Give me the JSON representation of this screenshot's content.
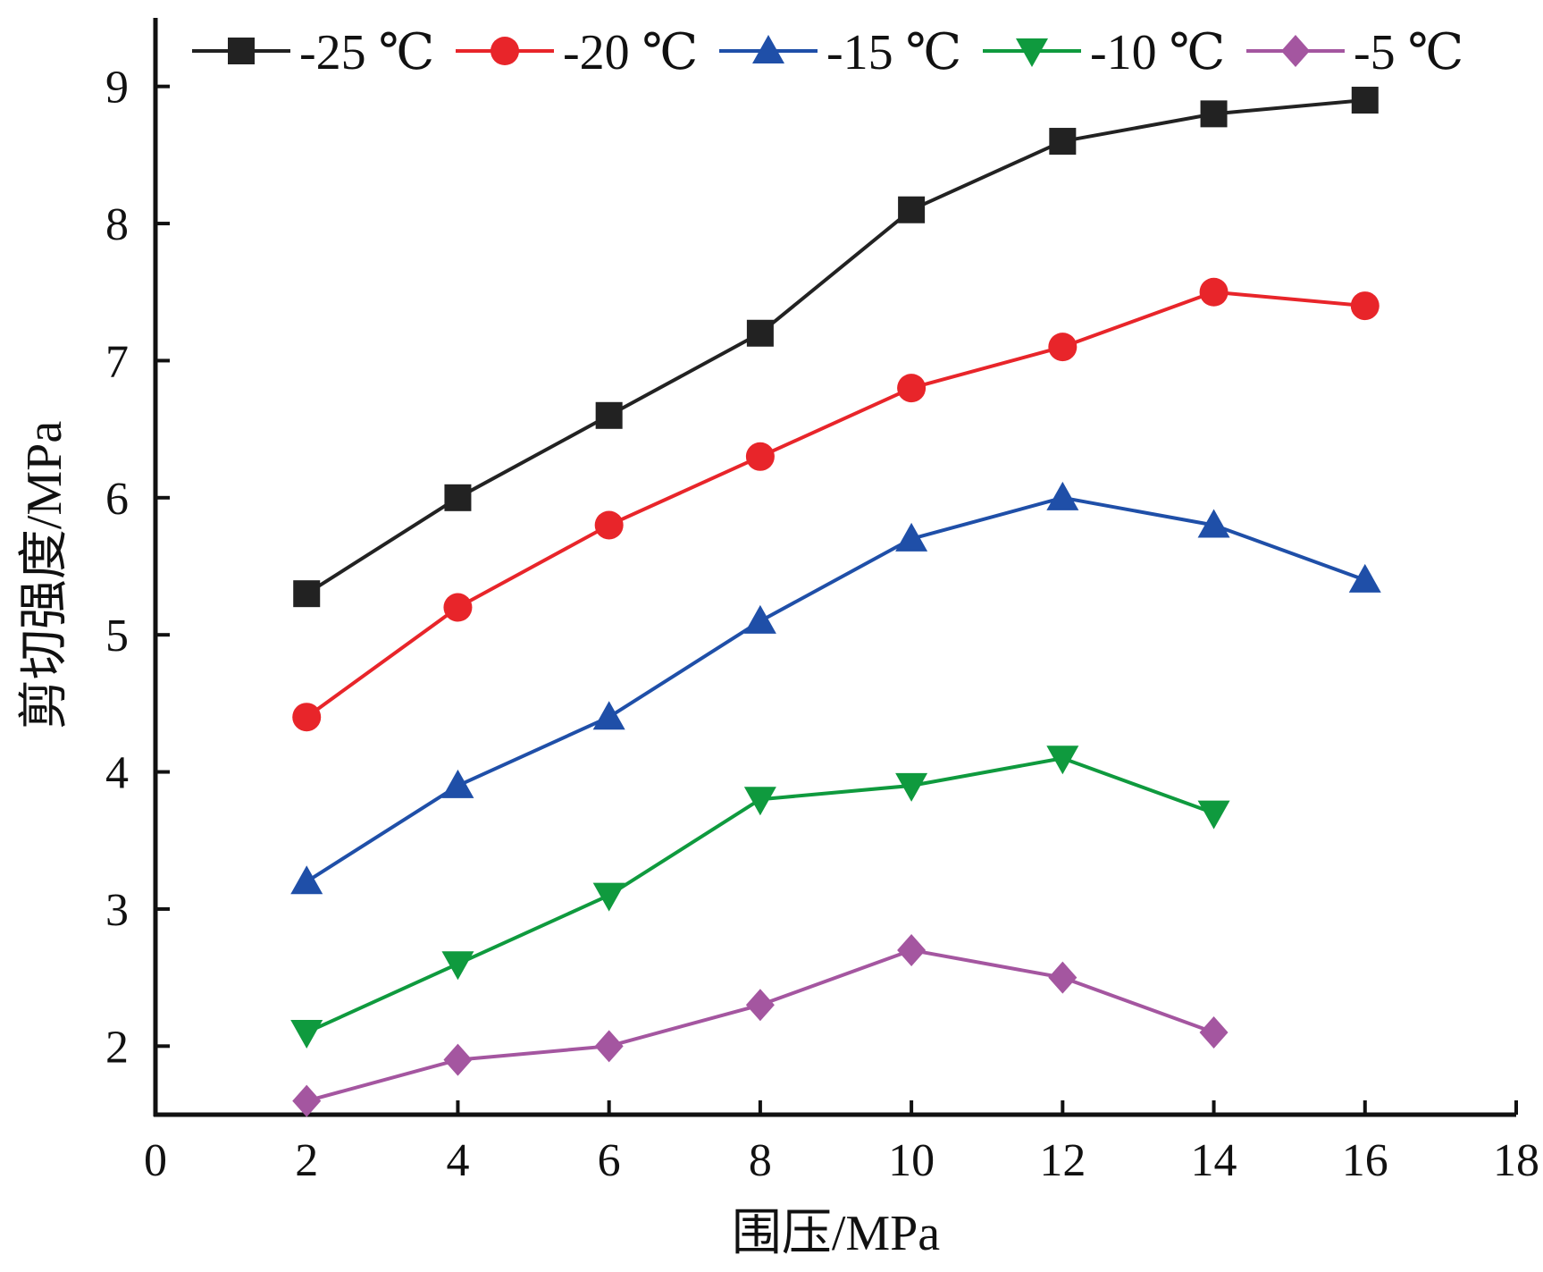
{
  "chart_data": {
    "type": "line",
    "title": "",
    "xlabel": "围压/MPa",
    "ylabel": "剪切强度/MPa",
    "xlim": [
      0,
      18
    ],
    "ylim": [
      1.5,
      9.5
    ],
    "xticks": [
      0,
      2,
      4,
      6,
      8,
      10,
      12,
      14,
      16,
      18
    ],
    "yticks": [
      2,
      3,
      4,
      5,
      6,
      7,
      8,
      9
    ],
    "grid": false,
    "legend_position": "top",
    "series": [
      {
        "name": "-25 ℃",
        "color": "#222222",
        "marker": "square",
        "x": [
          2,
          4,
          6,
          8,
          10,
          12,
          14,
          16
        ],
        "values": [
          5.3,
          6.0,
          6.6,
          7.2,
          8.1,
          8.6,
          8.8,
          8.9
        ]
      },
      {
        "name": "-20 ℃",
        "color": "#e8252a",
        "marker": "circle",
        "x": [
          2,
          4,
          6,
          8,
          10,
          12,
          14,
          16
        ],
        "values": [
          4.4,
          5.2,
          5.8,
          6.3,
          6.8,
          7.1,
          7.5,
          7.4
        ]
      },
      {
        "name": "-15 ℃",
        "color": "#1f4fa8",
        "marker": "triangle-up",
        "x": [
          2,
          4,
          6,
          8,
          10,
          12,
          14,
          16
        ],
        "values": [
          3.2,
          3.9,
          4.4,
          5.1,
          5.7,
          6.0,
          5.8,
          5.4
        ]
      },
      {
        "name": "-10 ℃",
        "color": "#0f9a3e",
        "marker": "triangle-down",
        "x": [
          2,
          4,
          6,
          8,
          10,
          12,
          14
        ],
        "values": [
          2.1,
          2.6,
          3.1,
          3.8,
          3.9,
          4.1,
          3.7
        ]
      },
      {
        "name": "-5 ℃",
        "color": "#a456a0",
        "marker": "diamond",
        "x": [
          2,
          4,
          6,
          8,
          10,
          12,
          14
        ],
        "values": [
          1.6,
          1.9,
          2.0,
          2.3,
          2.7,
          2.5,
          2.1
        ]
      }
    ]
  }
}
